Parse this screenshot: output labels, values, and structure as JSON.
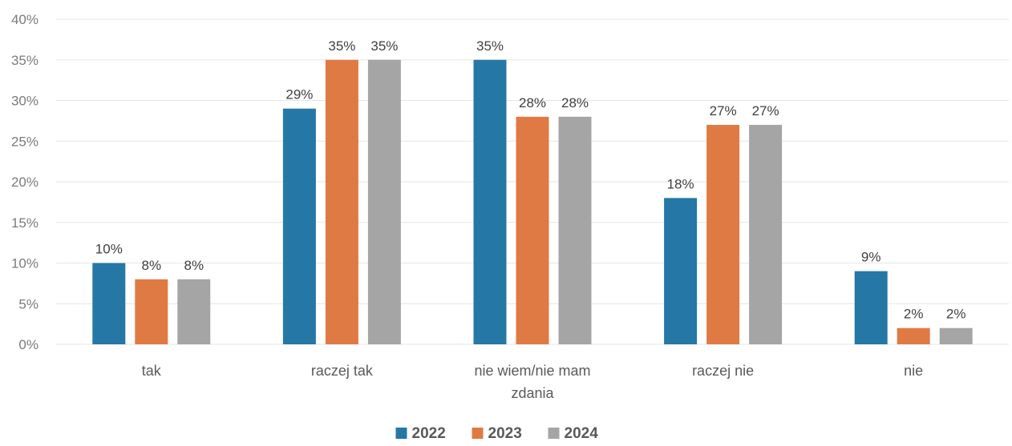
{
  "chart_data": {
    "type": "bar",
    "categories": [
      [
        "tak"
      ],
      [
        "raczej tak"
      ],
      [
        "nie wiem/nie mam",
        "zdania"
      ],
      [
        "raczej nie"
      ],
      [
        "nie"
      ]
    ],
    "series": [
      {
        "name": "2022",
        "color": "#2577a6",
        "values": [
          10,
          29,
          35,
          18,
          9
        ]
      },
      {
        "name": "2023",
        "color": "#e07a45",
        "values": [
          8,
          35,
          28,
          27,
          2
        ]
      },
      {
        "name": "2024",
        "color": "#a5a5a5",
        "values": [
          8,
          35,
          28,
          27,
          2
        ]
      }
    ],
    "value_labels": [
      [
        "10%",
        "29%",
        "35%",
        "18%",
        "9%"
      ],
      [
        "8%",
        "35%",
        "28%",
        "27%",
        "2%"
      ],
      [
        "8%",
        "35%",
        "28%",
        "27%",
        "2%"
      ]
    ],
    "yticks": [
      "0%",
      "5%",
      "10%",
      "15%",
      "20%",
      "25%",
      "30%",
      "35%",
      "40%"
    ],
    "ylim": [
      0,
      40
    ],
    "grid": true,
    "legend_position": "bottom-center",
    "gridline_color": "#e6e6e6"
  }
}
